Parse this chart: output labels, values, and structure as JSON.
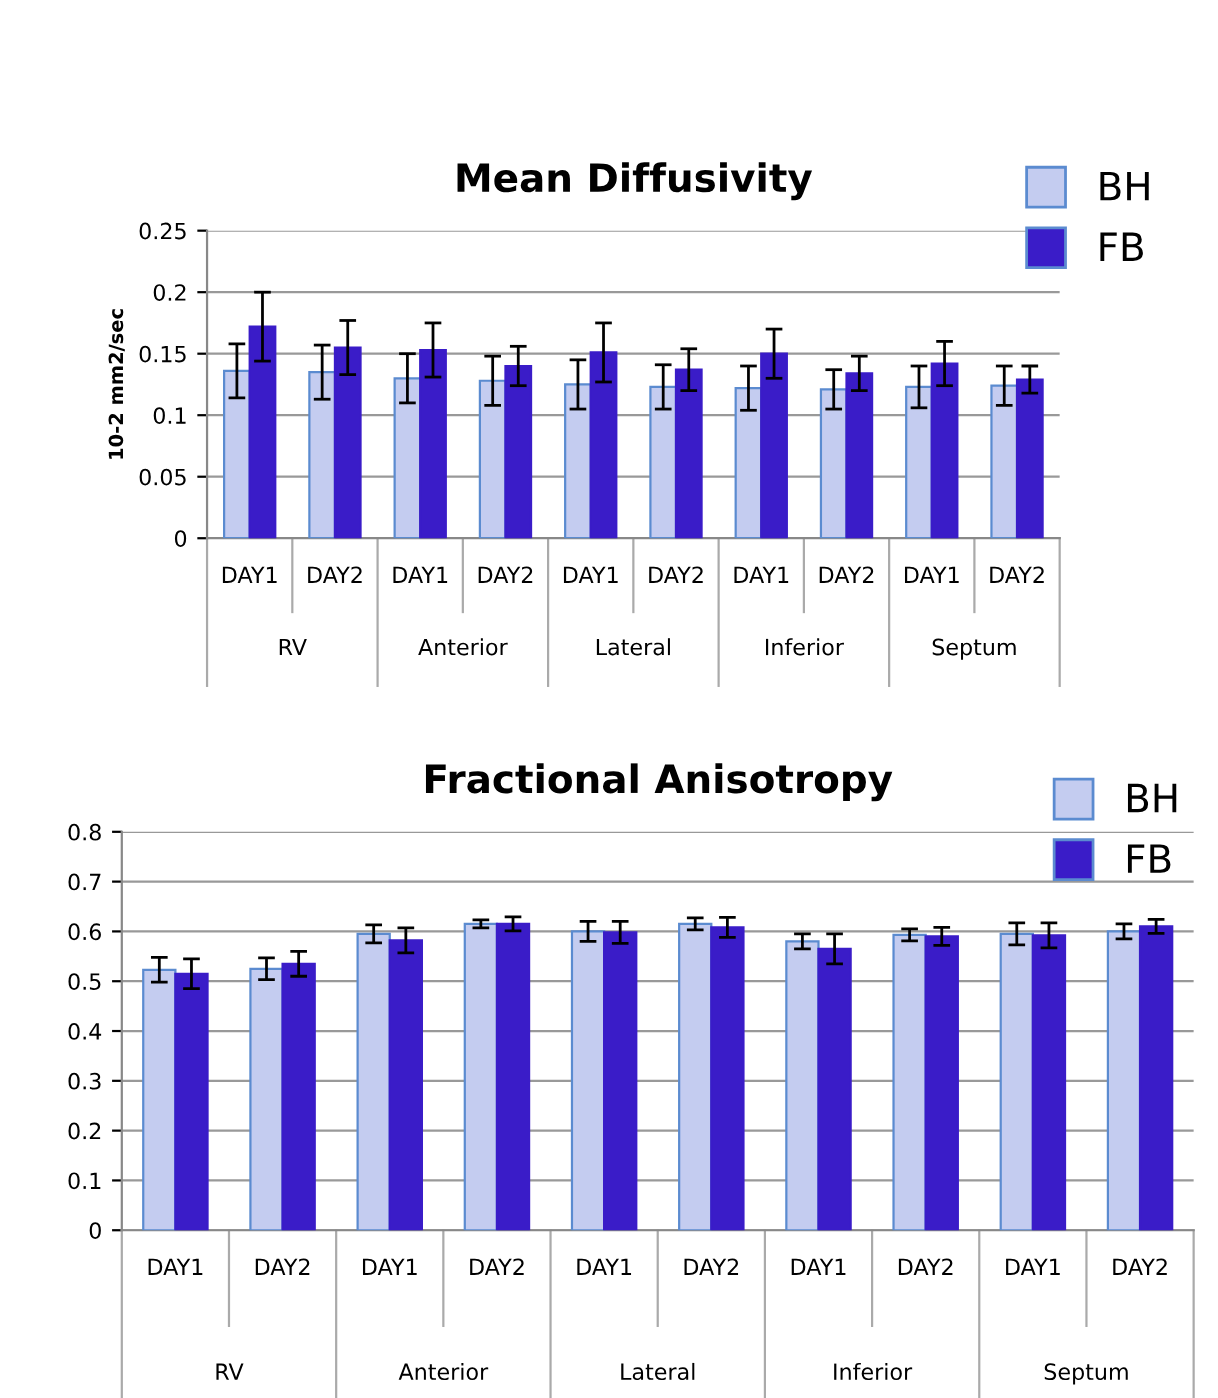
{
  "chart_data": [
    {
      "type": "bar",
      "title": "Mean Diffusivity",
      "ylabel": "10-2 mm2/sec",
      "categories": [
        "DAY1",
        "DAY2",
        "DAY1",
        "DAY2",
        "DAY1",
        "DAY2",
        "DAY1",
        "DAY2",
        "DAY1",
        "DAY2"
      ],
      "annotations": [
        "RV",
        "Anterior",
        "Lateral",
        "Inferior",
        "Septum"
      ],
      "series": [
        {
          "name": "BH",
          "color": "#c4ccf0",
          "values": [
            0.136,
            0.135,
            0.13,
            0.128,
            0.125,
            0.123,
            0.122,
            0.121,
            0.123,
            0.124
          ],
          "errors": [
            0.022,
            0.022,
            0.02,
            0.02,
            0.02,
            0.018,
            0.018,
            0.016,
            0.017,
            0.016
          ]
        },
        {
          "name": "FB",
          "color": "#3a1cc8",
          "values": [
            0.172,
            0.155,
            0.153,
            0.14,
            0.151,
            0.137,
            0.15,
            0.134,
            0.142,
            0.129
          ],
          "errors": [
            0.028,
            0.022,
            0.022,
            0.016,
            0.024,
            0.017,
            0.02,
            0.014,
            0.018,
            0.011
          ]
        }
      ],
      "ylim": [
        0,
        0.25
      ],
      "yticks": [
        0,
        0.05,
        0.1,
        0.15,
        0.2,
        0.25
      ],
      "grid": "y",
      "legend": "top right"
    },
    {
      "type": "bar",
      "title": "Fractional Anisotropy",
      "categories": [
        "DAY1",
        "DAY2",
        "DAY1",
        "DAY2",
        "DAY1",
        "DAY2",
        "DAY1",
        "DAY2",
        "DAY1",
        "DAY2"
      ],
      "annotations": [
        "RV",
        "Anterior",
        "Lateral",
        "Inferior",
        "Septum"
      ],
      "series": [
        {
          "name": "BH",
          "color": "#c4ccf0",
          "values": [
            0.523,
            0.525,
            0.595,
            0.615,
            0.6,
            0.615,
            0.58,
            0.593,
            0.595,
            0.6
          ],
          "errors": [
            0.025,
            0.022,
            0.018,
            0.008,
            0.02,
            0.012,
            0.015,
            0.012,
            0.022,
            0.015
          ]
        },
        {
          "name": "FB",
          "color": "#3a1cc8",
          "values": [
            0.515,
            0.535,
            0.582,
            0.615,
            0.598,
            0.608,
            0.565,
            0.59,
            0.592,
            0.61
          ],
          "errors": [
            0.03,
            0.025,
            0.025,
            0.014,
            0.022,
            0.02,
            0.03,
            0.018,
            0.025,
            0.014
          ]
        }
      ],
      "ylim": [
        0,
        0.8
      ],
      "yticks": [
        0,
        0.1,
        0.2,
        0.3,
        0.4,
        0.5,
        0.6,
        0.7,
        0.8
      ],
      "grid": "y",
      "legend": "top right"
    }
  ]
}
